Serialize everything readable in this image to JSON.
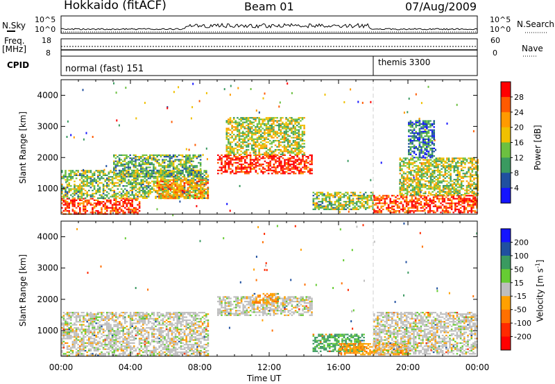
{
  "header": {
    "title": "Hokkaido (fitACF)",
    "beam": "Beam 01",
    "date": "07/Aug/2009"
  },
  "side_labels": {
    "nsky": "N.Sky",
    "nsky_tick_top": "10^5",
    "nsky_tick_bottom": "10^0",
    "nsearch": "N.Search",
    "nsearch_tick_top": "10^5",
    "nsearch_tick_bottom": "10^0",
    "freq_line1": "Freq.",
    "freq_line2": "[MHz]",
    "freq_tick_top": "18",
    "freq_tick_bottom": "8",
    "nave": "Nave",
    "nave_tick_top": "60",
    "nave_tick_bottom": "0",
    "cpid": "CPID"
  },
  "cpid_segments": [
    {
      "label": "normal (fast) 151",
      "start_hour": 0
    },
    {
      "label": "themis 3300",
      "start_hour": 18
    }
  ],
  "power_colorbar": {
    "label": "Power [dB]",
    "ticks": [
      "28",
      "24",
      "20",
      "16",
      "12",
      "8",
      "4"
    ],
    "colors": [
      "#ff0000",
      "#ff5a00",
      "#ff9a00",
      "#f0c000",
      "#6cc040",
      "#3a9a60",
      "#2050a0",
      "#1414ff"
    ]
  },
  "velocity_colorbar": {
    "label_main": "Velocity [m s",
    "label_sup": "-1",
    "label_end": "]",
    "ticks": [
      "200",
      "100",
      "50",
      "15",
      "-15",
      "-50",
      "-100",
      "-200"
    ],
    "colors": [
      "#1414ff",
      "#2050a0",
      "#3a9a60",
      "#66cc33",
      "#bebebe",
      "#ffa000",
      "#ff7000",
      "#ff2a00",
      "#ff0000"
    ]
  },
  "chart_data": [
    {
      "type": "heatmap",
      "panel": "power",
      "ylabel": "Slant Range [km]",
      "y_ticks": [
        "4000",
        "3000",
        "2000",
        "1000"
      ],
      "x_ticks": [
        "00:00",
        "04:00",
        "08:00",
        "12:00",
        "16:00",
        "20:00",
        "00:00"
      ],
      "xlabel": "Time UT",
      "xlim_hours": [
        0,
        24
      ],
      "ylim_km": [
        180,
        4500
      ],
      "echo_regions": [
        {
          "t0": 0.0,
          "t1": 4.5,
          "r0": 200,
          "r1": 700,
          "power_db": 28
        },
        {
          "t0": 0.0,
          "t1": 8.5,
          "r0": 700,
          "r1": 1600,
          "power_db": 14
        },
        {
          "t0": 3.0,
          "t1": 8.0,
          "r0": 1400,
          "r1": 2100,
          "power_db": 12
        },
        {
          "t0": 5.5,
          "t1": 8.5,
          "r0": 700,
          "r1": 1300,
          "power_db": 22
        },
        {
          "t0": 9.0,
          "t1": 14.5,
          "r0": 1500,
          "r1": 2100,
          "power_db": 30
        },
        {
          "t0": 9.5,
          "t1": 14.0,
          "r0": 2100,
          "r1": 3300,
          "power_db": 16
        },
        {
          "t0": 14.5,
          "t1": 18.0,
          "r0": 350,
          "r1": 900,
          "power_db": 14
        },
        {
          "t0": 18.0,
          "t1": 24.0,
          "r0": 250,
          "r1": 800,
          "power_db": 28
        },
        {
          "t0": 19.5,
          "t1": 24.0,
          "r0": 800,
          "r1": 2000,
          "power_db": 16
        },
        {
          "t0": 20.0,
          "t1": 21.5,
          "r0": 2000,
          "r1": 3200,
          "power_db": 8
        }
      ]
    },
    {
      "type": "heatmap",
      "panel": "velocity",
      "ylabel": "Slant Range [km]",
      "y_ticks": [
        "4000",
        "3000",
        "2000",
        "1000"
      ],
      "x_ticks": [
        "00:00",
        "04:00",
        "08:00",
        "12:00",
        "16:00",
        "20:00",
        "00:00"
      ],
      "xlabel": "Time UT",
      "xlim_hours": [
        0,
        24
      ],
      "ylim_km": [
        180,
        4500
      ],
      "echo_regions": [
        {
          "t0": 0.0,
          "t1": 8.5,
          "r0": 200,
          "r1": 1600,
          "velocity_ms": 0
        },
        {
          "t0": 9.0,
          "t1": 14.5,
          "r0": 1500,
          "r1": 2100,
          "velocity_ms": 0
        },
        {
          "t0": 11.0,
          "t1": 12.5,
          "r0": 1900,
          "r1": 2200,
          "velocity_ms": -40
        },
        {
          "t0": 14.5,
          "t1": 17.5,
          "r0": 350,
          "r1": 900,
          "velocity_ms": 60
        },
        {
          "t0": 16.0,
          "t1": 20.0,
          "r0": 250,
          "r1": 600,
          "velocity_ms": -40
        },
        {
          "t0": 18.0,
          "t1": 24.0,
          "r0": 250,
          "r1": 1600,
          "velocity_ms": 0
        }
      ]
    }
  ]
}
